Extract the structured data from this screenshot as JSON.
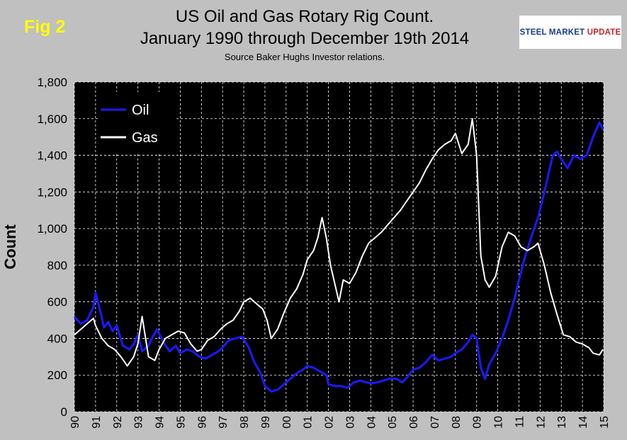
{
  "figure_label": "Fig 2",
  "title_line1": "US Oil and Gas Rotary Rig Count.",
  "title_line2": "January 1990 through December 19th 2014",
  "subtitle": "Source Baker Hughs Investor relations.",
  "logo": {
    "part1": "STEEL MARKET",
    "part2": "UPDATE"
  },
  "colors": {
    "background": "#c0c0c0",
    "plot_area": "#000000",
    "oil": "#1a1aff",
    "gas": "#ffffff",
    "grid": "#ffffff"
  },
  "chart_data": {
    "type": "line",
    "ylabel": "Count",
    "xlabel": "",
    "ylim": [
      0,
      1800
    ],
    "xlim": [
      1990,
      2015
    ],
    "grid": true,
    "legend_position": "top-left",
    "y_ticks": [
      "0",
      "200",
      "400",
      "600",
      "800",
      "1,000",
      "1,200",
      "1,400",
      "1,600",
      "1,800"
    ],
    "x_ticks": [
      "90",
      "91",
      "92",
      "93",
      "94",
      "95",
      "96",
      "97",
      "98",
      "99",
      "00",
      "01",
      "02",
      "03",
      "04",
      "05",
      "06",
      "07",
      "08",
      "09",
      "10",
      "11",
      "12",
      "13",
      "14",
      "15"
    ],
    "series": [
      {
        "name": "Oil",
        "x": [
          1990.0,
          1990.3,
          1990.6,
          1990.9,
          1991.0,
          1991.2,
          1991.4,
          1991.6,
          1991.8,
          1992.0,
          1992.3,
          1992.6,
          1992.8,
          1993.0,
          1993.2,
          1993.5,
          1993.7,
          1993.9,
          1994.2,
          1994.5,
          1994.8,
          1995.0,
          1995.3,
          1995.6,
          1995.9,
          1996.2,
          1996.5,
          1996.8,
          1997.0,
          1997.3,
          1997.6,
          1997.9,
          1998.2,
          1998.5,
          1998.8,
          1999.0,
          1999.3,
          1999.6,
          1999.9,
          2000.2,
          2000.5,
          2000.8,
          2001.0,
          2001.3,
          2001.6,
          2001.9,
          2002.0,
          2002.3,
          2002.6,
          2002.9,
          2003.2,
          2003.5,
          2003.8,
          2004.0,
          2004.3,
          2004.6,
          2004.9,
          2005.2,
          2005.5,
          2005.8,
          2006.0,
          2006.3,
          2006.6,
          2006.9,
          2007.2,
          2007.5,
          2007.8,
          2008.0,
          2008.3,
          2008.6,
          2008.8,
          2009.0,
          2009.2,
          2009.4,
          2009.6,
          2009.9,
          2010.2,
          2010.5,
          2010.8,
          2011.0,
          2011.3,
          2011.6,
          2011.9,
          2012.1,
          2012.4,
          2012.6,
          2012.8,
          2013.0,
          2013.3,
          2013.6,
          2013.9,
          2014.2,
          2014.5,
          2014.8,
          2014.97
        ],
        "values": [
          520,
          480,
          500,
          570,
          650,
          560,
          460,
          490,
          440,
          470,
          360,
          340,
          370,
          420,
          330,
          360,
          410,
          450,
          380,
          330,
          360,
          320,
          340,
          330,
          300,
          290,
          310,
          330,
          350,
          390,
          400,
          410,
          360,
          270,
          210,
          140,
          110,
          120,
          150,
          180,
          210,
          230,
          250,
          240,
          220,
          200,
          150,
          140,
          140,
          130,
          160,
          170,
          160,
          155,
          160,
          170,
          180,
          180,
          160,
          200,
          230,
          240,
          270,
          310,
          280,
          290,
          300,
          320,
          340,
          380,
          420,
          400,
          240,
          180,
          260,
          320,
          400,
          500,
          620,
          720,
          850,
          960,
          1060,
          1150,
          1300,
          1400,
          1420,
          1380,
          1330,
          1400,
          1380,
          1400,
          1500,
          1580,
          1540
        ]
      },
      {
        "name": "Gas",
        "x": [
          1990.0,
          1990.3,
          1990.6,
          1990.9,
          1991.0,
          1991.3,
          1991.6,
          1991.9,
          1992.2,
          1992.5,
          1992.8,
          1993.0,
          1993.2,
          1993.5,
          1993.8,
          1994.0,
          1994.3,
          1994.6,
          1994.9,
          1995.2,
          1995.5,
          1995.8,
          1996.0,
          1996.3,
          1996.6,
          1996.9,
          1997.2,
          1997.5,
          1997.8,
          1998.0,
          1998.3,
          1998.6,
          1998.9,
          1999.1,
          1999.3,
          1999.6,
          1999.9,
          2000.2,
          2000.5,
          2000.8,
          2001.0,
          2001.3,
          2001.5,
          2001.7,
          2001.9,
          2002.1,
          2002.3,
          2002.5,
          2002.7,
          2003.0,
          2003.3,
          2003.6,
          2003.9,
          2004.2,
          2004.5,
          2004.8,
          2005.1,
          2005.4,
          2005.7,
          2006.0,
          2006.3,
          2006.6,
          2006.9,
          2007.2,
          2007.5,
          2007.8,
          2008.0,
          2008.3,
          2008.6,
          2008.8,
          2009.0,
          2009.2,
          2009.4,
          2009.6,
          2009.9,
          2010.2,
          2010.5,
          2010.8,
          2011.1,
          2011.4,
          2011.7,
          2011.9,
          2012.2,
          2012.5,
          2012.8,
          2013.1,
          2013.4,
          2013.7,
          2014.0,
          2014.3,
          2014.5,
          2014.8,
          2014.97
        ],
        "values": [
          420,
          450,
          480,
          510,
          470,
          400,
          360,
          340,
          300,
          250,
          300,
          370,
          520,
          300,
          280,
          340,
          400,
          420,
          440,
          430,
          370,
          330,
          340,
          390,
          410,
          450,
          480,
          500,
          550,
          600,
          620,
          590,
          560,
          500,
          400,
          450,
          540,
          620,
          670,
          750,
          830,
          880,
          950,
          1060,
          950,
          800,
          700,
          600,
          720,
          700,
          760,
          850,
          920,
          950,
          980,
          1020,
          1060,
          1100,
          1150,
          1200,
          1250,
          1320,
          1380,
          1430,
          1460,
          1480,
          1520,
          1410,
          1460,
          1600,
          1400,
          850,
          720,
          680,
          740,
          900,
          980,
          960,
          900,
          880,
          900,
          920,
          800,
          650,
          530,
          420,
          410,
          380,
          370,
          350,
          320,
          310,
          340
        ]
      }
    ]
  }
}
